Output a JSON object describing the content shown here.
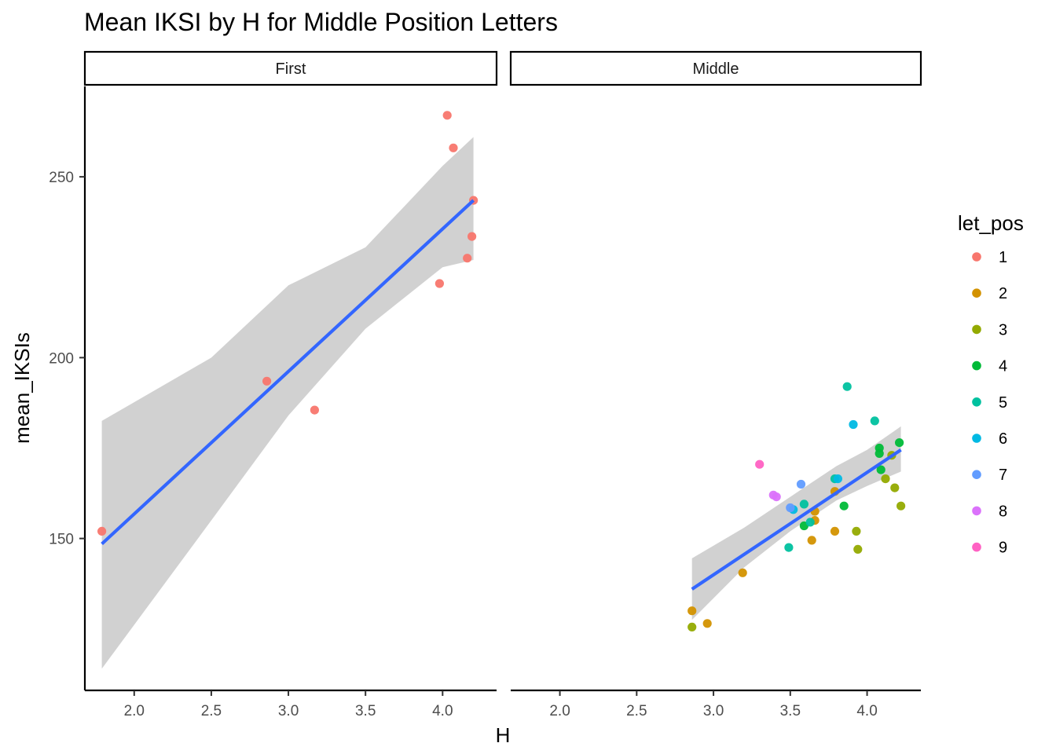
{
  "chart_data": {
    "type": "scatter",
    "title": "Mean IKSI by H for Middle Position Letters",
    "xlabel": "H",
    "ylabel": "mean_IKSIs",
    "xlim": [
      1.68,
      4.35
    ],
    "ylim": [
      108,
      275
    ],
    "x_ticks": [
      2.0,
      2.5,
      3.0,
      3.5,
      4.0
    ],
    "x_tick_labels": [
      "2.0",
      "2.5",
      "3.0",
      "3.5",
      "4.0"
    ],
    "y_ticks": [
      150,
      200,
      250
    ],
    "y_tick_labels": [
      "150",
      "200",
      "250"
    ],
    "grid": false,
    "legend": {
      "title": "let_pos",
      "position": "right",
      "entries": [
        {
          "label": "1",
          "color": "#F8766D"
        },
        {
          "label": "2",
          "color": "#D39200"
        },
        {
          "label": "3",
          "color": "#93AA00"
        },
        {
          "label": "4",
          "color": "#00BA38"
        },
        {
          "label": "5",
          "color": "#00C19F"
        },
        {
          "label": "6",
          "color": "#00B9E3"
        },
        {
          "label": "7",
          "color": "#619CFF"
        },
        {
          "label": "8",
          "color": "#DB72FB"
        },
        {
          "label": "9",
          "color": "#FF61C3"
        }
      ]
    },
    "fit_line_color": "#3366FF",
    "ribbon_color": "#cccccc",
    "panels": [
      {
        "label": "First",
        "points": [
          {
            "x": 1.79,
            "y": 152,
            "pos": 1
          },
          {
            "x": 2.86,
            "y": 193.5,
            "pos": 1
          },
          {
            "x": 3.17,
            "y": 185.5,
            "pos": 1
          },
          {
            "x": 3.98,
            "y": 220.5,
            "pos": 1
          },
          {
            "x": 4.03,
            "y": 267,
            "pos": 1
          },
          {
            "x": 4.07,
            "y": 258,
            "pos": 1
          },
          {
            "x": 4.16,
            "y": 227.5,
            "pos": 1
          },
          {
            "x": 4.19,
            "y": 233.5,
            "pos": 1
          },
          {
            "x": 4.2,
            "y": 243.5,
            "pos": 1
          }
        ],
        "fit": {
          "x": [
            1.79,
            4.2
          ],
          "y": [
            148.5,
            243.5
          ]
        },
        "ribbon": {
          "x": [
            1.79,
            2.5,
            3.0,
            3.5,
            4.0,
            4.2
          ],
          "lower": [
            114,
            155,
            184,
            208,
            225,
            227
          ],
          "upper": [
            182.5,
            200,
            220,
            230.5,
            253,
            261
          ]
        }
      },
      {
        "label": "Middle",
        "points": [
          {
            "x": 2.86,
            "y": 130,
            "pos": 2
          },
          {
            "x": 2.96,
            "y": 126.5,
            "pos": 2
          },
          {
            "x": 3.19,
            "y": 140.5,
            "pos": 2
          },
          {
            "x": 3.64,
            "y": 149.5,
            "pos": 2
          },
          {
            "x": 3.66,
            "y": 155,
            "pos": 2
          },
          {
            "x": 3.66,
            "y": 157.5,
            "pos": 2
          },
          {
            "x": 3.79,
            "y": 152,
            "pos": 2
          },
          {
            "x": 3.79,
            "y": 163,
            "pos": 2
          },
          {
            "x": 2.86,
            "y": 125.5,
            "pos": 3
          },
          {
            "x": 3.93,
            "y": 152,
            "pos": 3
          },
          {
            "x": 3.94,
            "y": 147,
            "pos": 3
          },
          {
            "x": 4.12,
            "y": 166.5,
            "pos": 3
          },
          {
            "x": 4.16,
            "y": 173,
            "pos": 3
          },
          {
            "x": 4.18,
            "y": 164,
            "pos": 3
          },
          {
            "x": 4.22,
            "y": 159,
            "pos": 3
          },
          {
            "x": 3.59,
            "y": 153.5,
            "pos": 4
          },
          {
            "x": 3.85,
            "y": 159,
            "pos": 4
          },
          {
            "x": 4.08,
            "y": 175,
            "pos": 4
          },
          {
            "x": 4.08,
            "y": 173.5,
            "pos": 4
          },
          {
            "x": 4.09,
            "y": 169,
            "pos": 4
          },
          {
            "x": 4.21,
            "y": 176.5,
            "pos": 4
          },
          {
            "x": 3.49,
            "y": 147.5,
            "pos": 5
          },
          {
            "x": 3.59,
            "y": 159.5,
            "pos": 5
          },
          {
            "x": 3.63,
            "y": 154.5,
            "pos": 5
          },
          {
            "x": 3.79,
            "y": 166.5,
            "pos": 5
          },
          {
            "x": 3.87,
            "y": 192,
            "pos": 5
          },
          {
            "x": 4.05,
            "y": 182.5,
            "pos": 5
          },
          {
            "x": 3.52,
            "y": 158,
            "pos": 6
          },
          {
            "x": 3.81,
            "y": 166.5,
            "pos": 6
          },
          {
            "x": 3.91,
            "y": 181.5,
            "pos": 6
          },
          {
            "x": 3.5,
            "y": 158.5,
            "pos": 7
          },
          {
            "x": 3.57,
            "y": 165,
            "pos": 7
          },
          {
            "x": 3.39,
            "y": 162,
            "pos": 8
          },
          {
            "x": 3.41,
            "y": 161.5,
            "pos": 8
          },
          {
            "x": 3.3,
            "y": 170.5,
            "pos": 9
          }
        ],
        "fit": {
          "x": [
            2.86,
            4.22
          ],
          "y": [
            136,
            174.5
          ]
        },
        "ribbon": {
          "x": [
            2.86,
            3.2,
            3.5,
            3.8,
            4.0,
            4.22
          ],
          "lower": [
            127.5,
            142,
            152,
            160.5,
            164.5,
            168.5
          ],
          "upper": [
            144.5,
            153,
            161.5,
            170,
            174.5,
            181
          ]
        }
      }
    ]
  }
}
